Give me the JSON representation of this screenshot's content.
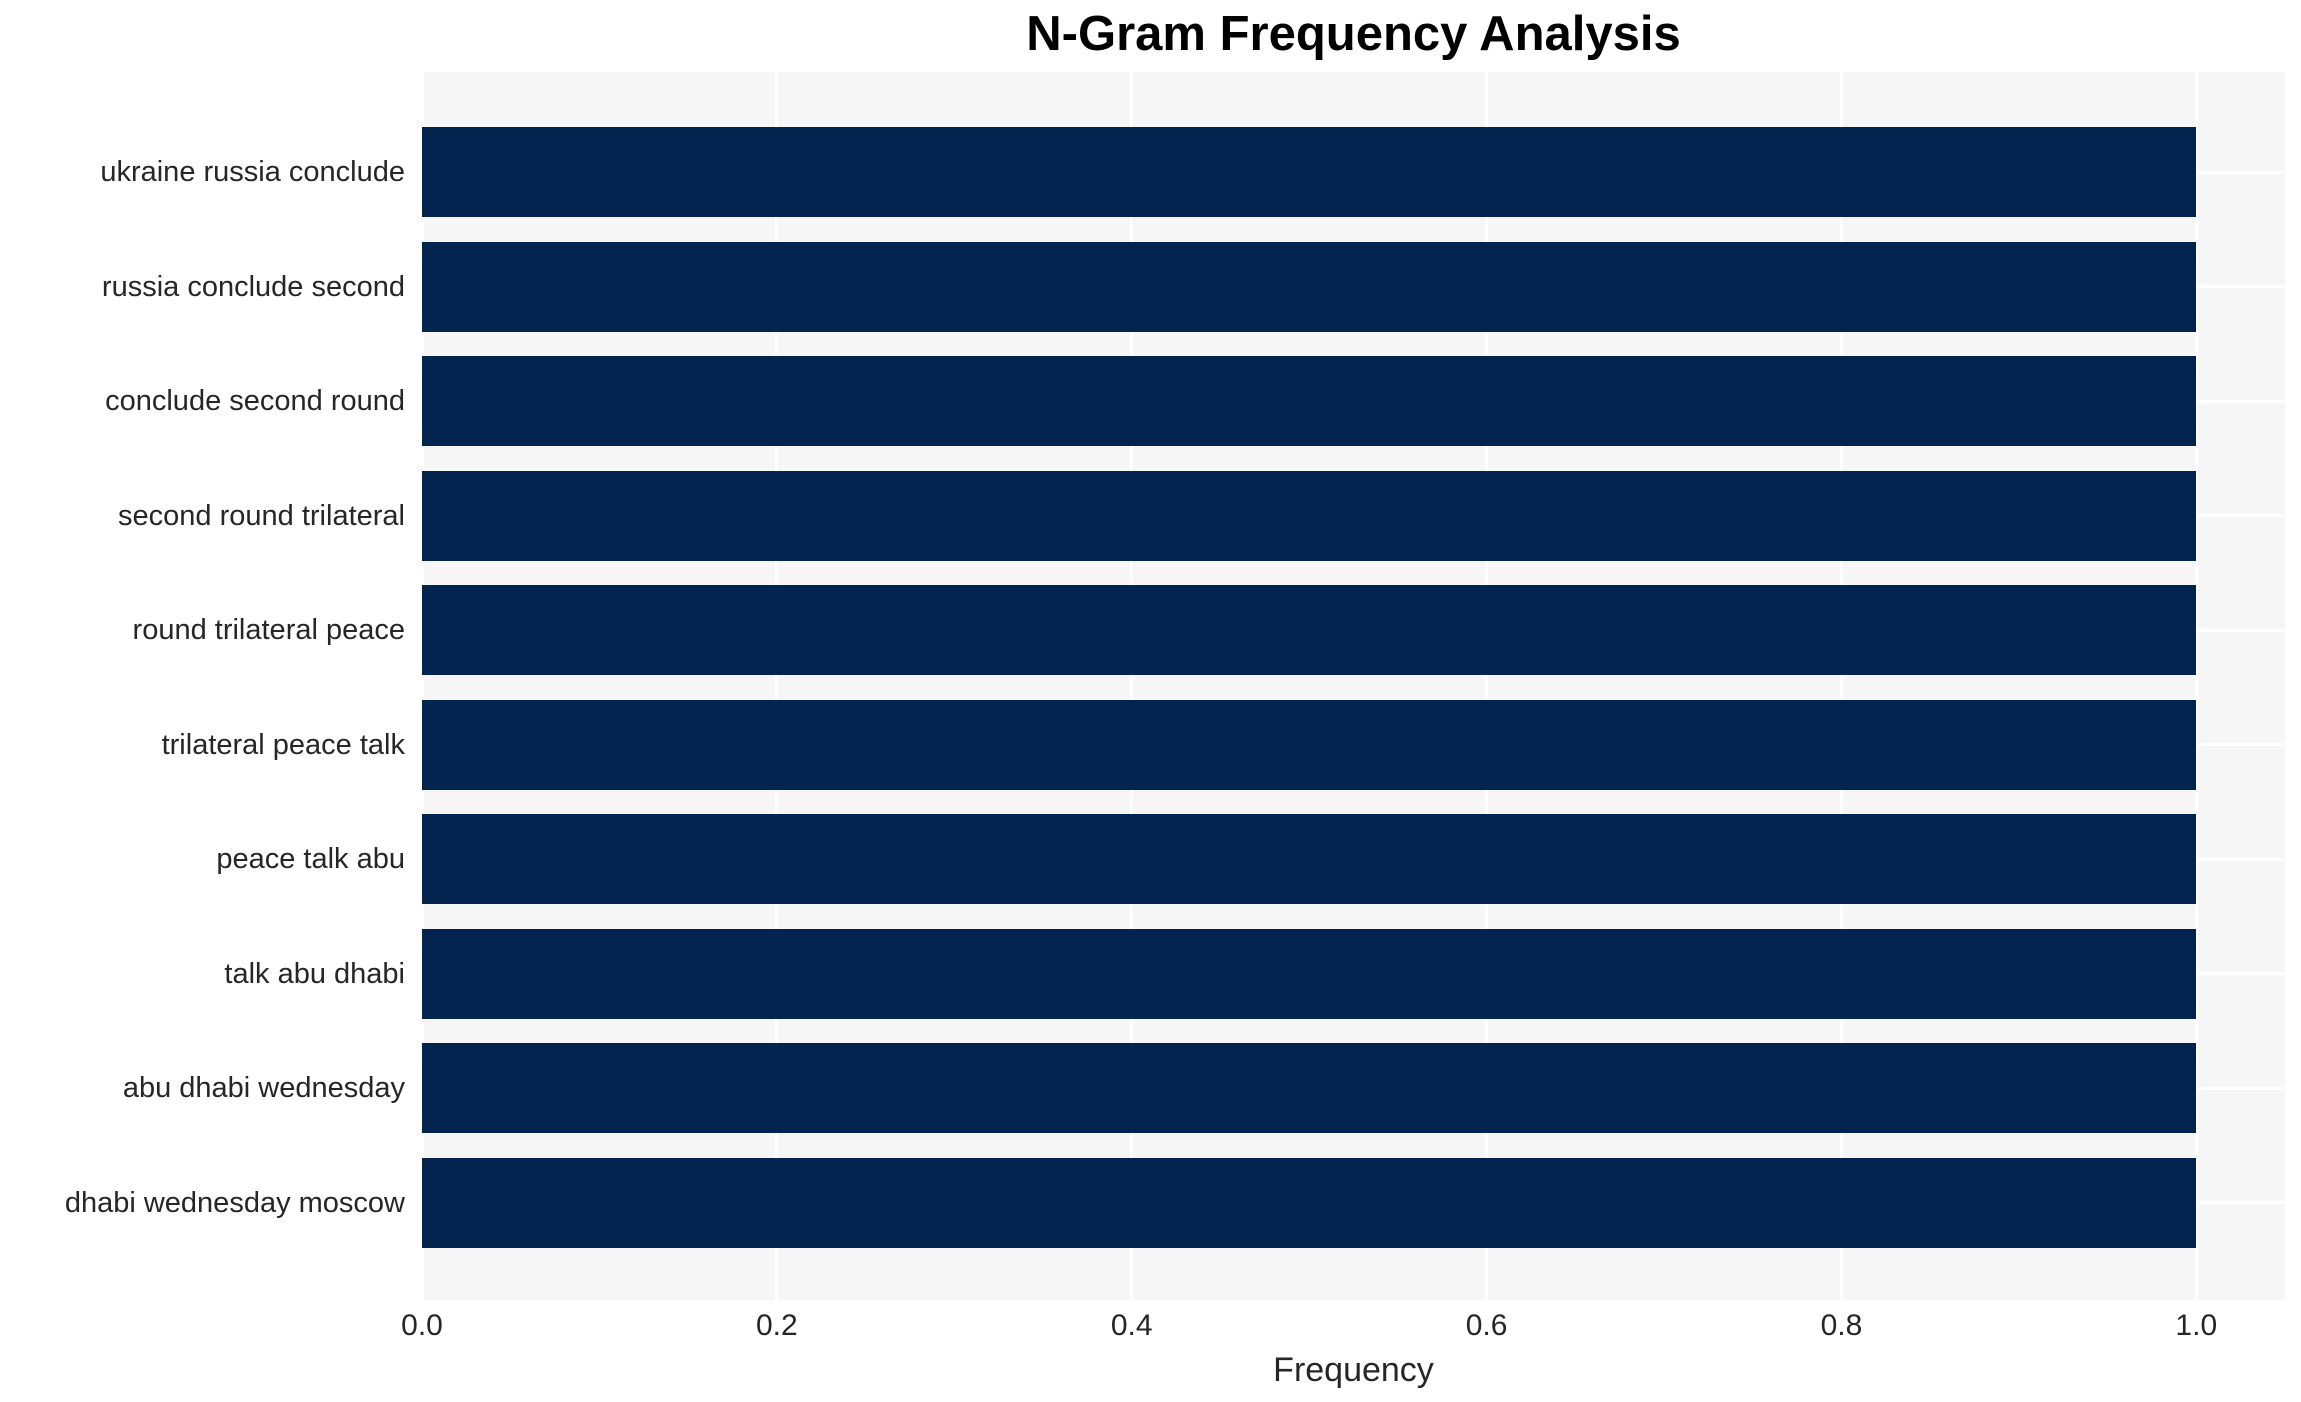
{
  "chart_data": {
    "type": "bar",
    "orientation": "horizontal",
    "title": "N-Gram Frequency Analysis",
    "xlabel": "Frequency",
    "ylabel": "",
    "categories": [
      "ukraine russia conclude",
      "russia conclude second",
      "conclude second round",
      "second round trilateral",
      "round trilateral peace",
      "trilateral peace talk",
      "peace talk abu",
      "talk abu dhabi",
      "abu dhabi wednesday",
      "dhabi wednesday moscow"
    ],
    "values": [
      1.0,
      1.0,
      1.0,
      1.0,
      1.0,
      1.0,
      1.0,
      1.0,
      1.0,
      1.0
    ],
    "xlim": [
      0,
      1.05
    ],
    "xticks": [
      0.0,
      0.2,
      0.4,
      0.6,
      0.8,
      1.0
    ],
    "xtick_labels": [
      "0.0",
      "0.2",
      "0.4",
      "0.6",
      "0.8",
      "1.0"
    ],
    "grid": true,
    "legend": false,
    "colors": {
      "bar": "#02244e",
      "plot_background": "#f6f6f7",
      "gridline": "#ffffff",
      "tick_text": "#262626",
      "title_text": "#000000"
    }
  }
}
